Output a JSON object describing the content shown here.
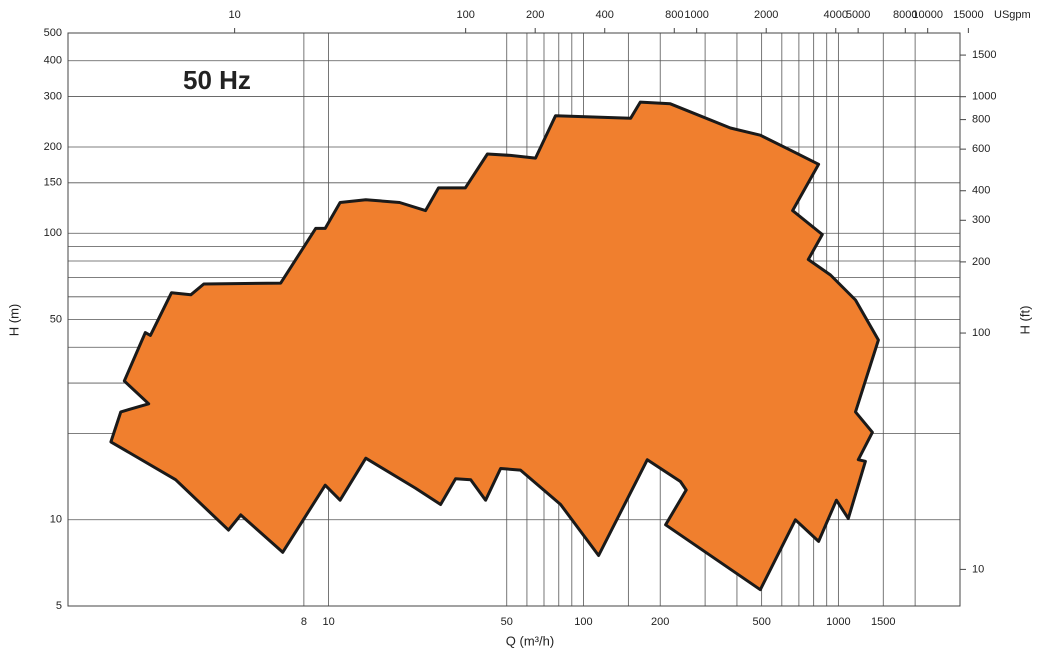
{
  "chart_data": {
    "type": "area",
    "annotation": "50 Hz",
    "xlabel": "Q (m³/h)",
    "ylabel": "H (m)",
    "y2label": "H (ft)",
    "x2label": "USgpm",
    "log_x": true,
    "log_y": true,
    "grid": true,
    "color": "#f07f2e",
    "edge_color": "#1a1a1a",
    "xlim": [
      0.95,
      3000
    ],
    "ylim": [
      5,
      500
    ],
    "xticks": [
      8,
      10,
      50,
      100,
      200,
      500,
      1000,
      1500
    ],
    "xminorticks": [
      60,
      70,
      80,
      90,
      150,
      300,
      400,
      600,
      700,
      800,
      900,
      2000
    ],
    "yticks": [
      5,
      10,
      50,
      100,
      150,
      200,
      300,
      400,
      500
    ],
    "yminorticks": [
      20,
      30,
      40,
      60,
      70,
      80,
      90
    ],
    "y2lim": [
      7,
      1860
    ],
    "y2ticks": [
      10,
      100,
      200,
      300,
      400,
      600,
      800,
      1000,
      1500
    ],
    "x2lim": [
      1.9,
      13800
    ],
    "x2ticks": [
      10,
      100,
      200,
      400,
      800,
      1000,
      2000,
      4000,
      5000,
      8000,
      10000,
      15000
    ],
    "x": [
      1.4,
      1.53,
      1.97,
      1.58,
      1.91,
      2.0,
      2.42,
      2.88,
      3.24,
      6.49,
      8.9,
      9.7,
      11.1,
      14,
      19,
      24,
      27,
      34.4,
      42,
      51.7,
      64.8,
      77.7,
      153,
      167,
      219,
      377,
      494,
      649,
      836,
      661,
      865,
      762,
      931,
      1167,
      1435,
      1167,
      1360,
      1197,
      1276,
      1094,
      982,
      836,
      678,
      494,
      210,
      253,
      240,
      178,
      114.6,
      81.3,
      56.6,
      47.3,
      41.3,
      36.1,
      31.5,
      27.5,
      21.9,
      14,
      11.1,
      9.7,
      6.61,
      4.52,
      4.05,
      2.51
    ],
    "values": [
      18.7,
      23.8,
      25.4,
      30.5,
      45,
      44,
      62,
      61,
      66.5,
      67,
      104,
      104,
      128,
      131,
      128,
      120,
      144,
      144,
      189,
      187,
      183,
      257,
      252,
      287,
      283,
      233,
      220,
      195,
      174,
      120,
      99,
      81,
      71.5,
      58.5,
      42.4,
      23.8,
      20.2,
      16.2,
      16,
      10.1,
      11.7,
      8.4,
      10,
      5.7,
      9.6,
      12.7,
      13.6,
      16.2,
      7.5,
      11.3,
      14.9,
      15.1,
      11.7,
      13.8,
      13.9,
      11.3,
      12.9,
      16.4,
      11.7,
      13.2,
      7.7,
      10.4,
      9.2,
      13.8
    ]
  }
}
